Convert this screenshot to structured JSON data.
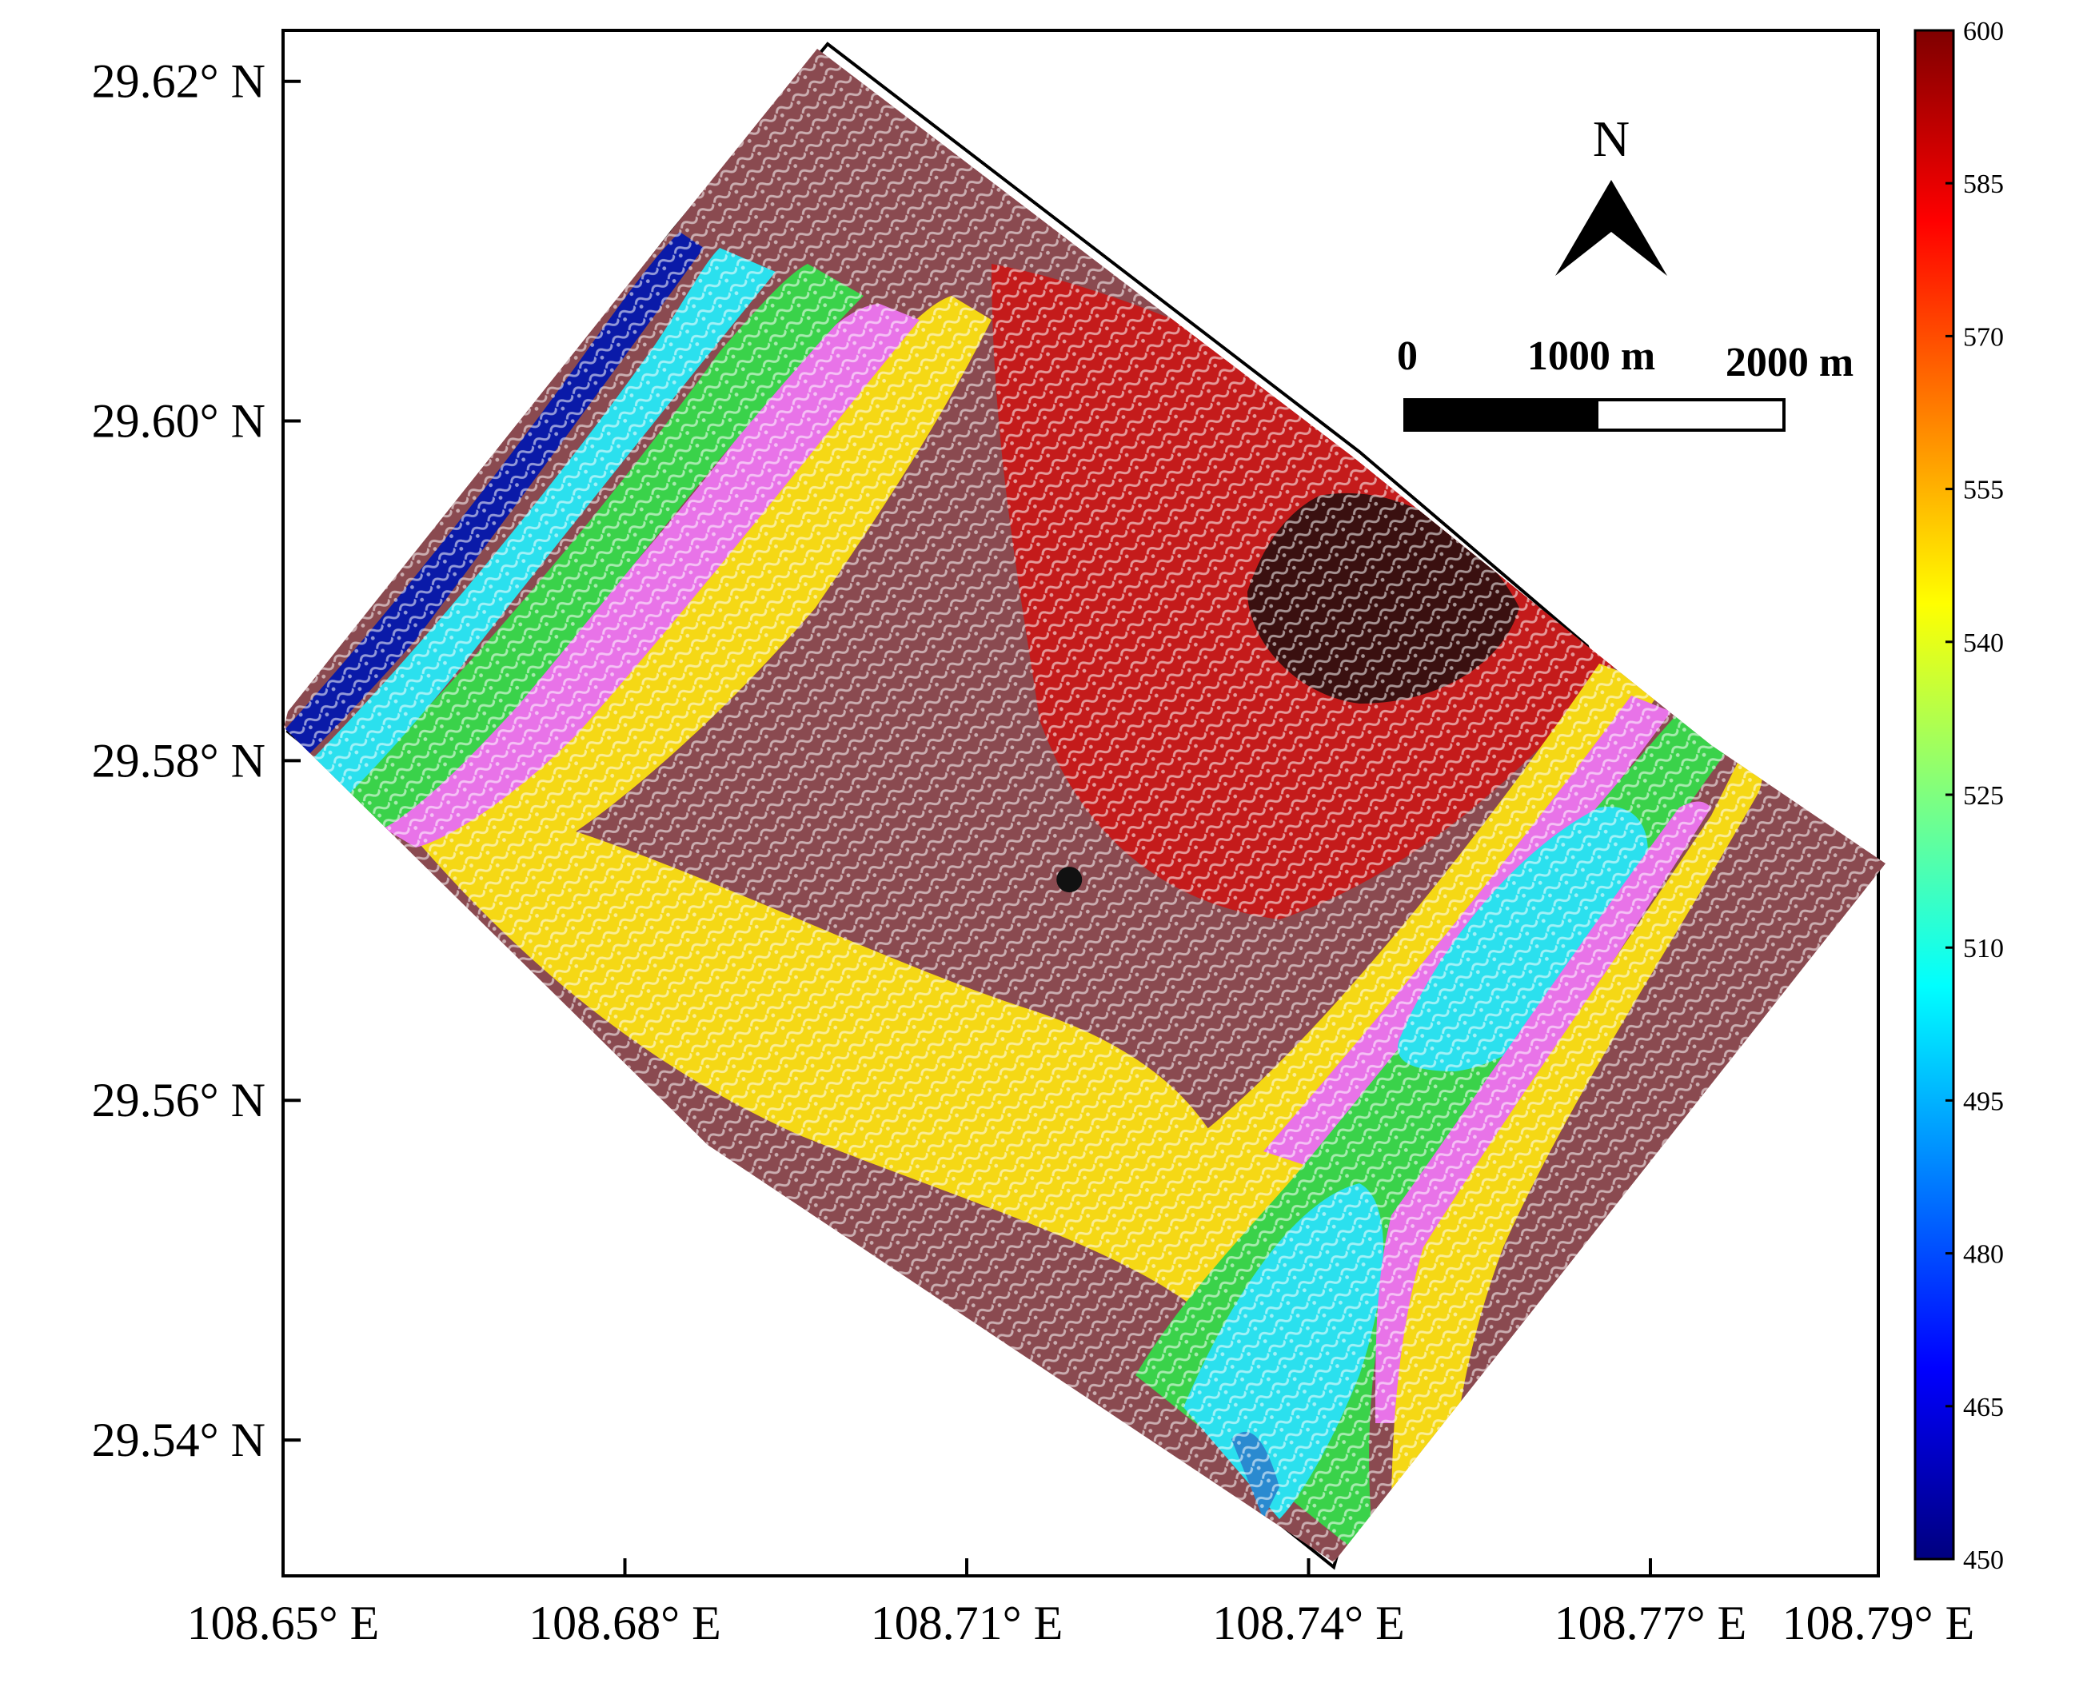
{
  "chart_data": {
    "type": "heatmap",
    "title": "",
    "xlabel": "",
    "ylabel": "",
    "x_ticks": [
      "108.65° E",
      "108.68° E",
      "108.71° E",
      "108.74° E",
      "108.77° E",
      "108.79° E"
    ],
    "x_tick_values": [
      108.65,
      108.68,
      108.71,
      108.74,
      108.77,
      108.79
    ],
    "y_ticks": [
      "29.62° N",
      "29.60° N",
      "29.58° N",
      "29.56° N",
      "29.54° N"
    ],
    "y_tick_values": [
      29.62,
      29.6,
      29.58,
      29.56,
      29.54
    ],
    "xlim": [
      108.65,
      108.79
    ],
    "ylim": [
      29.532,
      29.623
    ],
    "colorbar": {
      "label": "",
      "range": [
        450,
        600
      ],
      "ticks": [
        "600",
        "585",
        "570",
        "555",
        "540",
        "525",
        "510",
        "495",
        "480",
        "465",
        "450"
      ],
      "colors": [
        "#00007f",
        "#0000ff",
        "#007fff",
        "#00ffff",
        "#7fff7f",
        "#ffff00",
        "#ff7f00",
        "#ff0000",
        "#7f0000"
      ]
    },
    "legend": "colorbar at right",
    "grid": false,
    "north_arrow": "N",
    "scale_bar": {
      "labels": [
        "0",
        "1000 m",
        "2000 m"
      ]
    },
    "marker": {
      "lon": 108.719,
      "lat": 29.573,
      "label": ""
    },
    "zones_color_order": [
      "#0a1aa8",
      "#2be0ee",
      "#3ad24a",
      "#e873e8",
      "#f5d815",
      "#8a4a50",
      "#a82020",
      "#d51818",
      "#3a1010"
    ]
  }
}
